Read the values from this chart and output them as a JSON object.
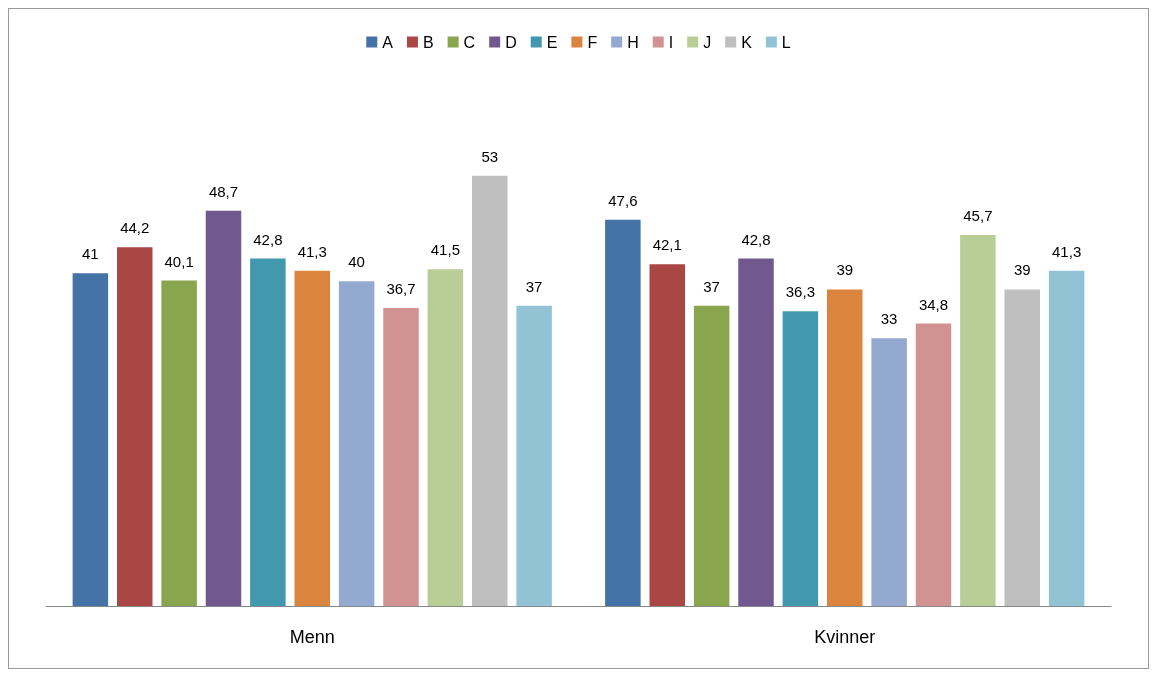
{
  "chart_data": {
    "type": "bar",
    "categories": [
      "Menn",
      "Kvinner"
    ],
    "legend": "top",
    "grid": false,
    "series": [
      {
        "name": "A",
        "color": "#4572a7",
        "values": [
          41,
          47.6
        ],
        "value_labels": [
          "41",
          "47,6"
        ]
      },
      {
        "name": "B",
        "color": "#aa4643",
        "values": [
          44.2,
          42.1
        ],
        "value_labels": [
          "44,2",
          "42,1"
        ]
      },
      {
        "name": "C",
        "color": "#89a54e",
        "values": [
          40.1,
          37
        ],
        "value_labels": [
          "40,1",
          "37"
        ]
      },
      {
        "name": "D",
        "color": "#71588f",
        "values": [
          48.7,
          42.8
        ],
        "value_labels": [
          "48,7",
          "42,8"
        ]
      },
      {
        "name": "E",
        "color": "#4198af",
        "values": [
          42.8,
          36.3
        ],
        "value_labels": [
          "42,8",
          "36,3"
        ]
      },
      {
        "name": "F",
        "color": "#db843d",
        "values": [
          41.3,
          39
        ],
        "value_labels": [
          "41,3",
          "39"
        ]
      },
      {
        "name": "H",
        "color": "#93a9cf",
        "values": [
          40,
          33
        ],
        "value_labels": [
          "40",
          "33"
        ]
      },
      {
        "name": "I",
        "color": "#d19392",
        "values": [
          36.7,
          34.8
        ],
        "value_labels": [
          "36,7",
          "34,8"
        ]
      },
      {
        "name": "J",
        "color": "#b9cd96",
        "values": [
          41.5,
          45.7
        ],
        "value_labels": [
          "41,5",
          "45,7"
        ]
      },
      {
        "name": "K",
        "color": "#bfbfbf",
        "values": [
          53,
          39
        ],
        "value_labels": [
          "53",
          "39"
        ]
      },
      {
        "name": "L",
        "color": "#92c3d4",
        "values": [
          37,
          41.3
        ],
        "value_labels": [
          "37",
          "41,3"
        ]
      }
    ]
  }
}
